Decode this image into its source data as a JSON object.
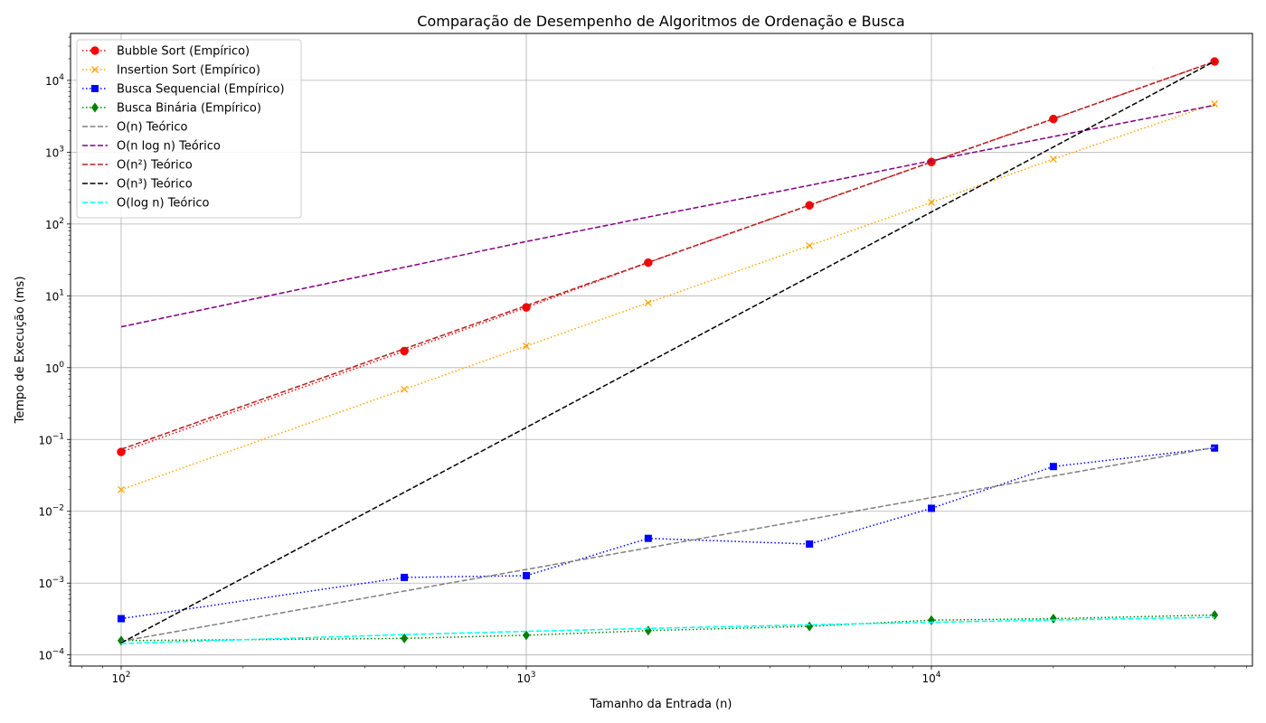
{
  "chart_data": {
    "type": "line",
    "title": "Comparação de Desempenho de Algoritmos de Ordenação e Busca",
    "xlabel": "Tamanho da Entrada (n)",
    "ylabel": "Tempo de Execução (ms)",
    "xscale": "log",
    "yscale": "log",
    "xlim": [
      75,
      62000
    ],
    "ylim": [
      7e-05,
      45000
    ],
    "grid": true,
    "legend_position": "upper-left",
    "x_ticks": [
      {
        "value": 100,
        "base": "10",
        "exp": "2"
      },
      {
        "value": 1000,
        "base": "10",
        "exp": "3"
      },
      {
        "value": 10000,
        "base": "10",
        "exp": "4"
      }
    ],
    "y_ticks": [
      {
        "value": 0.0001,
        "base": "10",
        "exp": "−4"
      },
      {
        "value": 0.001,
        "base": "10",
        "exp": "−3"
      },
      {
        "value": 0.01,
        "base": "10",
        "exp": "−2"
      },
      {
        "value": 0.1,
        "base": "10",
        "exp": "−1"
      },
      {
        "value": 1,
        "base": "10",
        "exp": "0"
      },
      {
        "value": 10,
        "base": "10",
        "exp": "1"
      },
      {
        "value": 100,
        "base": "10",
        "exp": "2"
      },
      {
        "value": 1000,
        "base": "10",
        "exp": "3"
      },
      {
        "value": 10000,
        "base": "10",
        "exp": "4"
      }
    ],
    "x": [
      100,
      500,
      1000,
      2000,
      5000,
      10000,
      20000,
      50000
    ],
    "series": [
      {
        "name": "Bubble Sort (Empírico)",
        "color": "#ff0000",
        "dash": "dotted",
        "marker": "circle",
        "values": [
          0.067,
          1.7,
          6.9,
          29,
          182,
          730,
          2900,
          18300
        ]
      },
      {
        "name": "Insertion Sort (Empírico)",
        "color": "#ffa500",
        "dash": "dotted",
        "marker": "x",
        "values": [
          0.02,
          0.5,
          2.0,
          8.0,
          50,
          200,
          800,
          4700
        ]
      },
      {
        "name": "Busca Sequencial (Empírico)",
        "color": "#0000ff",
        "dash": "dotted",
        "marker": "square",
        "values": [
          0.00032,
          0.0012,
          0.00127,
          0.0042,
          0.0035,
          0.011,
          0.042,
          0.076
        ]
      },
      {
        "name": "Busca Binária (Empírico)",
        "color": "#008000",
        "dash": "dotted",
        "marker": "diamond",
        "values": [
          0.000158,
          0.00017,
          0.000188,
          0.000218,
          0.00025,
          0.000305,
          0.00032,
          0.00036
        ]
      },
      {
        "name": "O(n) Teórico",
        "color": "#808080",
        "dash": "dashed",
        "marker": "none",
        "values": [
          0.000155,
          0.000775,
          0.00155,
          0.0031,
          0.00775,
          0.0155,
          0.031,
          0.0775
        ]
      },
      {
        "name": "O(n log n) Teórico",
        "color": "#800080",
        "dash": "dashed",
        "marker": "none",
        "values": [
          3.7,
          25,
          57,
          125,
          345,
          760,
          1650,
          4500
        ]
      },
      {
        "name": "O(n²) Teórico",
        "color": "#b22222",
        "dash": "dashed",
        "marker": "none",
        "values": [
          0.073,
          1.83,
          7.3,
          29.2,
          183,
          730,
          2920,
          18300
        ]
      },
      {
        "name": "O(n³) Teórico",
        "color": "#000000",
        "dash": "dashed",
        "marker": "none",
        "values": [
          0.000147,
          0.0184,
          0.147,
          1.18,
          18.4,
          147,
          1180,
          18400
        ]
      },
      {
        "name": "O(log n) Teórico",
        "color": "#00ffff",
        "dash": "dashed",
        "marker": "none",
        "values": [
          0.000144,
          0.000192,
          0.000213,
          0.000234,
          0.000263,
          0.000284,
          0.000306,
          0.000334
        ]
      }
    ]
  }
}
